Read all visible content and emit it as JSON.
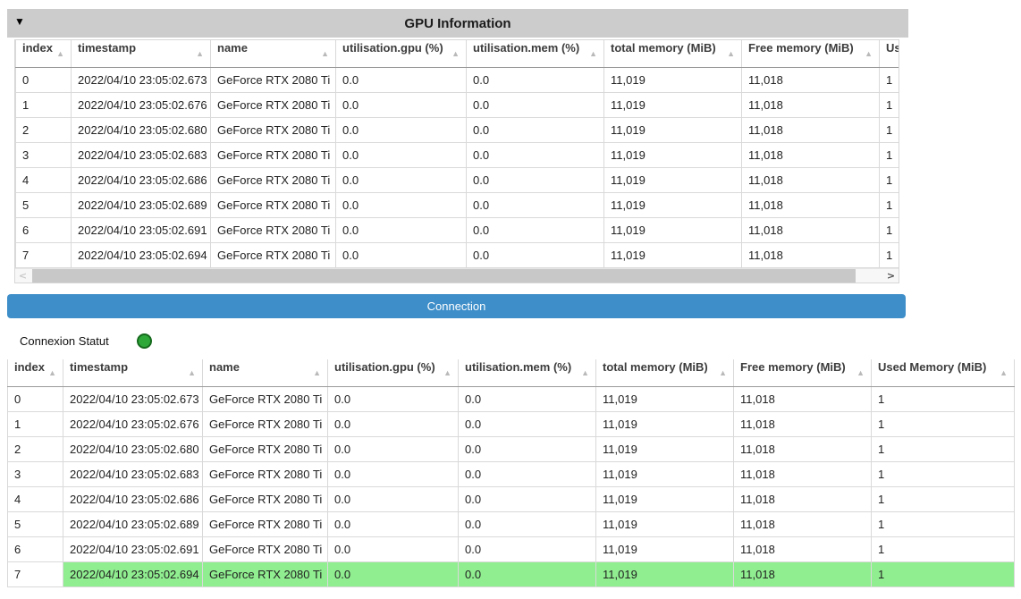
{
  "panel": {
    "collapse_icon": "▼",
    "title": "GPU Information"
  },
  "table": {
    "columns": [
      "index",
      "timestamp",
      "name",
      "utilisation.gpu (%)",
      "utilisation.mem (%)",
      "total memory (MiB)",
      "Free memory (MiB)",
      "Used Memory (MiB)"
    ],
    "sort_icon": "▲",
    "rows": [
      [
        "0",
        "2022/04/10 23:05:02.673",
        "GeForce RTX 2080 Ti",
        "0.0",
        "0.0",
        "11,019",
        "11,018",
        "1"
      ],
      [
        "1",
        "2022/04/10 23:05:02.676",
        "GeForce RTX 2080 Ti",
        "0.0",
        "0.0",
        "11,019",
        "11,018",
        "1"
      ],
      [
        "2",
        "2022/04/10 23:05:02.680",
        "GeForce RTX 2080 Ti",
        "0.0",
        "0.0",
        "11,019",
        "11,018",
        "1"
      ],
      [
        "3",
        "2022/04/10 23:05:02.683",
        "GeForce RTX 2080 Ti",
        "0.0",
        "0.0",
        "11,019",
        "11,018",
        "1"
      ],
      [
        "4",
        "2022/04/10 23:05:02.686",
        "GeForce RTX 2080 Ti",
        "0.0",
        "0.0",
        "11,019",
        "11,018",
        "1"
      ],
      [
        "5",
        "2022/04/10 23:05:02.689",
        "GeForce RTX 2080 Ti",
        "0.0",
        "0.0",
        "11,019",
        "11,018",
        "1"
      ],
      [
        "6",
        "2022/04/10 23:05:02.691",
        "GeForce RTX 2080 Ti",
        "0.0",
        "0.0",
        "11,019",
        "11,018",
        "1"
      ],
      [
        "7",
        "2022/04/10 23:05:02.694",
        "GeForce RTX 2080 Ti",
        "0.0",
        "0.0",
        "11,019",
        "11,018",
        "1"
      ]
    ]
  },
  "connection": {
    "button_label": "Connection"
  },
  "status": {
    "label": "Connexion Statut"
  },
  "highlight": {
    "row": 7,
    "color": "#90ee90"
  },
  "scrollbar": {
    "left_icon": "<",
    "right_icon": ">"
  },
  "colors": {
    "accent_blue": "#3d8ec9",
    "status_green": "#2fa83a",
    "status_green_border": "#156a1d",
    "header_gray": "#cccccc",
    "highlight_green": "#90ee90"
  }
}
